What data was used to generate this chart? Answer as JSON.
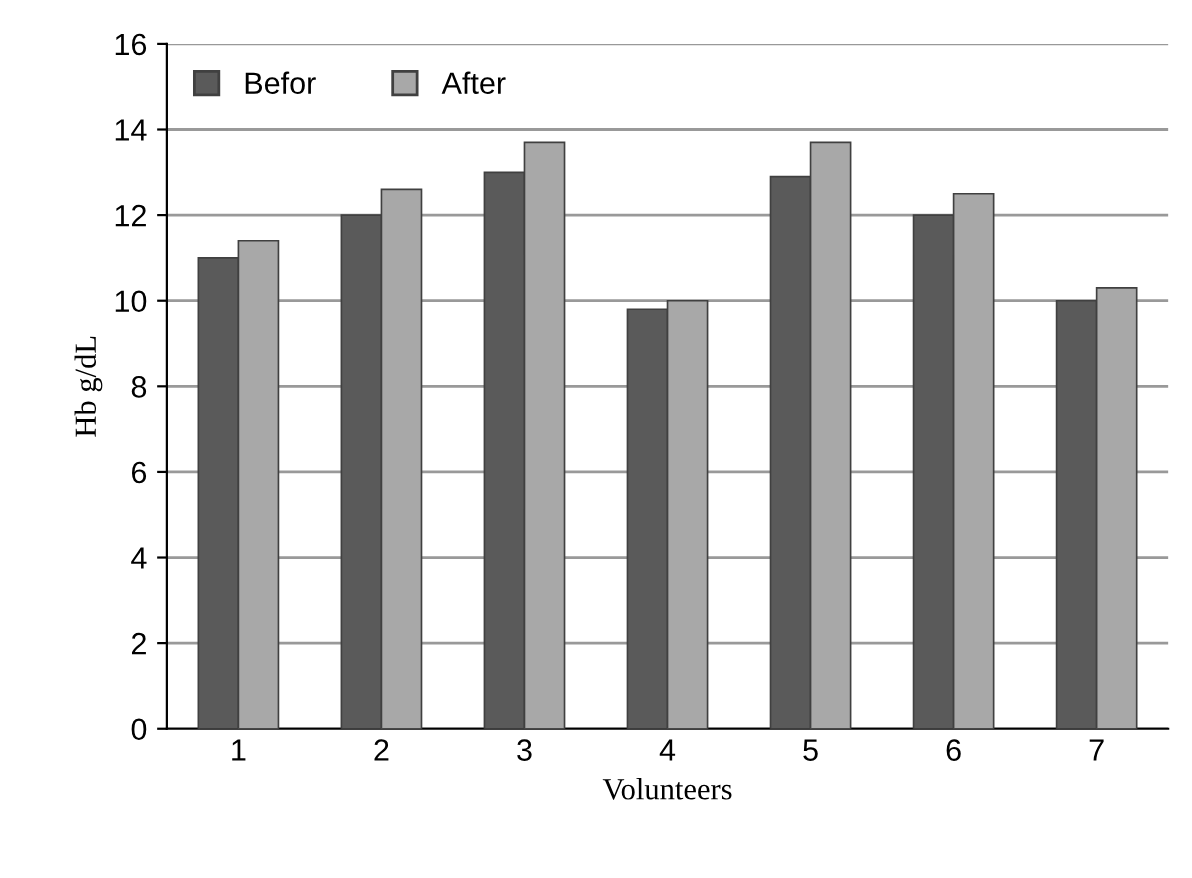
{
  "chart_data": {
    "type": "bar",
    "xlabel": "Volunteers",
    "ylabel": "Hb g/dL",
    "categories": [
      "1",
      "2",
      "3",
      "4",
      "5",
      "6",
      "7"
    ],
    "series": [
      {
        "name": "Befor",
        "color": "#5a5a5a",
        "values": [
          11.0,
          12.0,
          13.0,
          9.8,
          12.9,
          12.0,
          10.0
        ]
      },
      {
        "name": "After",
        "color": "#a8a8a8",
        "values": [
          11.4,
          12.6,
          13.7,
          10.0,
          13.7,
          12.5,
          10.3
        ]
      }
    ],
    "ylim": [
      0,
      16
    ],
    "yticks": [
      0,
      2,
      4,
      6,
      8,
      10,
      12,
      14,
      16
    ],
    "grid": "y",
    "legend": "top left"
  }
}
